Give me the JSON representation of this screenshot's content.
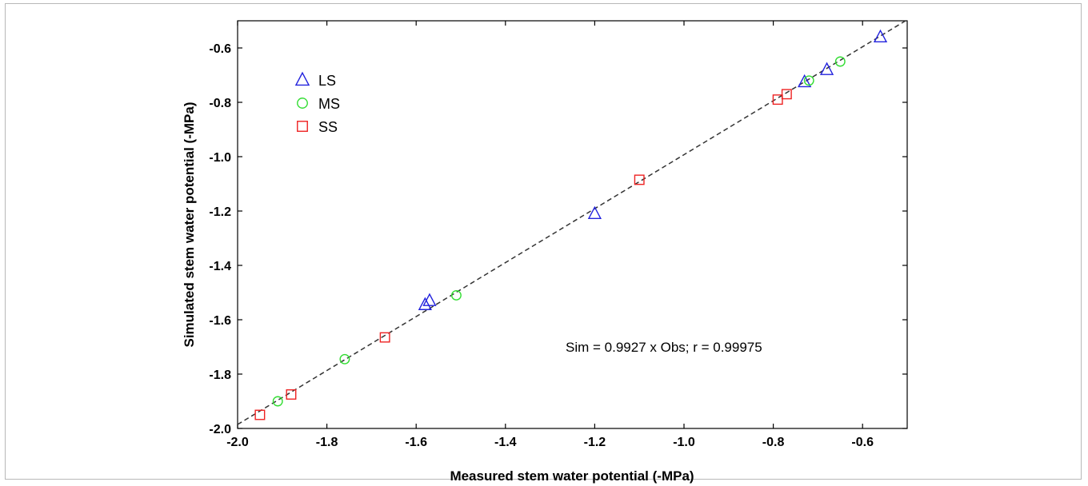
{
  "chart_data": {
    "type": "scatter",
    "xlabel": "Measured stem water potential (-MPa)",
    "ylabel": "Simulated stem water potential (-MPa)",
    "xlim": [
      -2.0,
      -0.5
    ],
    "ylim": [
      -2.0,
      -0.5
    ],
    "xticks": [
      -2.0,
      -1.8,
      -1.6,
      -1.4,
      -1.2,
      -1.0,
      -0.8,
      -0.6
    ],
    "yticks": [
      -2.0,
      -1.8,
      -1.6,
      -1.4,
      -1.2,
      -1.0,
      -0.8,
      -0.6
    ],
    "xtick_labels": [
      "-2.0",
      "-1.8",
      "-1.6",
      "-1.4",
      "-1.2",
      "-1.0",
      "-0.8",
      "-0.6"
    ],
    "ytick_labels": [
      "-2.0",
      "-1.8",
      "-1.6",
      "-1.4",
      "-1.2",
      "-1.0",
      "-0.8",
      "-0.6"
    ],
    "grid": false,
    "legend_position": "top-left",
    "annotation": "Sim = 0.9927 x Obs; r = 0.99975",
    "fit_line": {
      "slope": 0.9927,
      "style": "dashed",
      "color": "#333333"
    },
    "series": [
      {
        "name": "LS",
        "marker": "triangle",
        "color": "#2222dd",
        "points": [
          [
            -1.58,
            -1.545
          ],
          [
            -1.57,
            -1.53
          ],
          [
            -1.2,
            -1.21
          ],
          [
            -0.73,
            -0.725
          ],
          [
            -0.68,
            -0.68
          ],
          [
            -0.56,
            -0.56
          ]
        ]
      },
      {
        "name": "MS",
        "marker": "circle",
        "color": "#33dd33",
        "points": [
          [
            -1.91,
            -1.9
          ],
          [
            -1.76,
            -1.745
          ],
          [
            -1.51,
            -1.51
          ],
          [
            -0.72,
            -0.72
          ],
          [
            -0.65,
            -0.65
          ]
        ]
      },
      {
        "name": "SS",
        "marker": "square",
        "color": "#ee2222",
        "points": [
          [
            -1.95,
            -1.95
          ],
          [
            -1.88,
            -1.875
          ],
          [
            -1.67,
            -1.665
          ],
          [
            -1.1,
            -1.085
          ],
          [
            -0.79,
            -0.79
          ],
          [
            -0.77,
            -0.77
          ]
        ]
      }
    ]
  }
}
